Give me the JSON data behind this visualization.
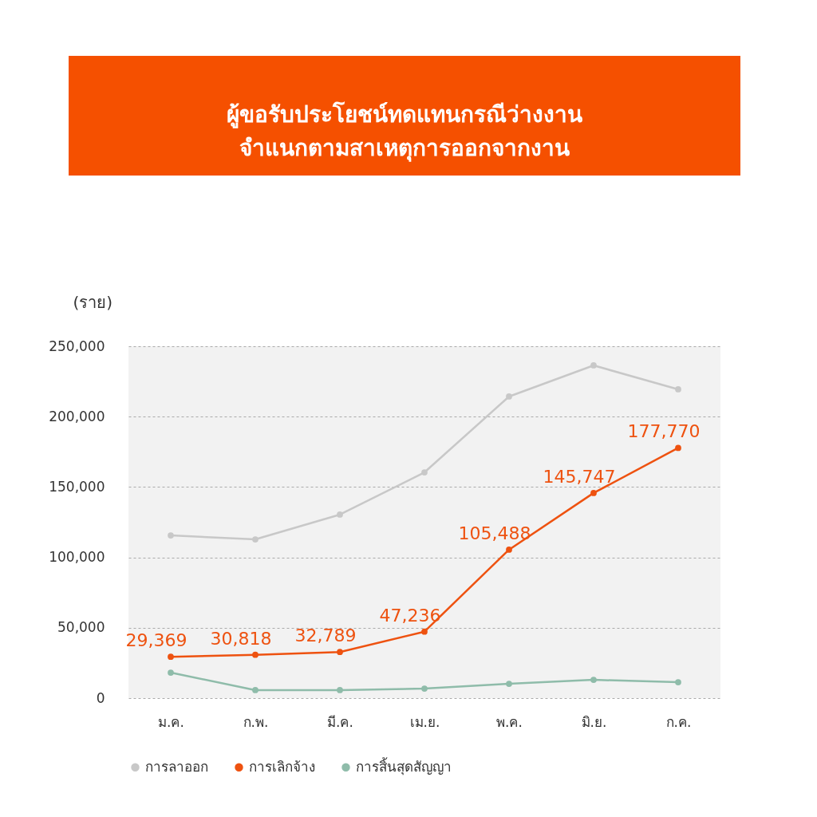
{
  "chart_data": {
    "type": "line",
    "title": "ผู้ขอรับประโยชน์ทดแทนกรณีว่างงาน\nจำแนกตามสาเหตุการออกจากงาน",
    "ylabel": "(ราย)",
    "categories": [
      "ม.ค.",
      "ก.พ.",
      "มี.ค.",
      "เม.ย.",
      "พ.ค.",
      "มิ.ย.",
      "ก.ค."
    ],
    "series": [
      {
        "name": "การลาออก",
        "color": "#c8c8c8",
        "values": [
          115600,
          112800,
          130400,
          160400,
          214300,
          236400,
          219400
        ]
      },
      {
        "name": "การเลิกจ้าง",
        "color": "#ee5210",
        "values": [
          29369,
          30818,
          32789,
          47236,
          105488,
          145747,
          177770
        ],
        "value_labels": [
          "29,369",
          "30,818",
          "32,789",
          "47,236",
          "105,488",
          "145,747",
          "177,770"
        ]
      },
      {
        "name": "การสิ้นสุดสัญญา",
        "color": "#8fbcaa",
        "values": [
          18100,
          5700,
          5700,
          6800,
          10200,
          13000,
          11300
        ]
      }
    ],
    "ylim": [
      0,
      250000
    ],
    "yticks": [
      {
        "value": 0,
        "label": "0"
      },
      {
        "value": 50000,
        "label": "50,000"
      },
      {
        "value": 100000,
        "label": "100,000"
      },
      {
        "value": 150000,
        "label": "150,000"
      },
      {
        "value": 200000,
        "label": "200,000"
      },
      {
        "value": 250000,
        "label": "250,000"
      }
    ],
    "grid": "y",
    "legend": "bottom",
    "marker": "circle",
    "line_style": "solid"
  }
}
